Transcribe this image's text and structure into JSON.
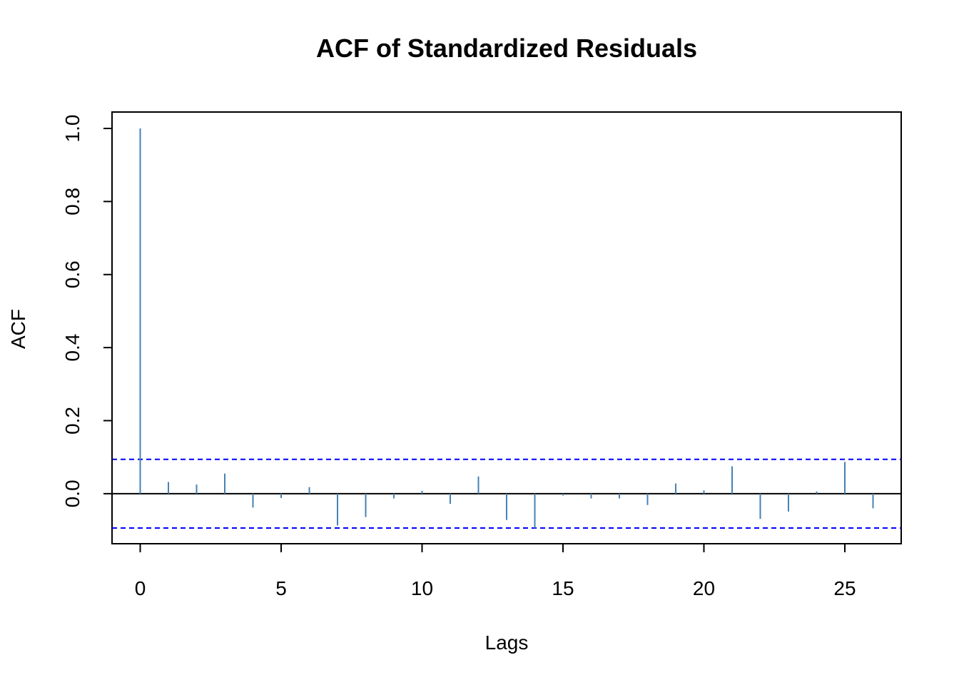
{
  "chart_data": {
    "type": "bar",
    "title": "ACF of Standardized Residuals",
    "xlabel": "Lags",
    "ylabel": "ACF",
    "xlim": [
      -1,
      27
    ],
    "ylim": [
      -0.137,
      1.045
    ],
    "x_ticks": [
      0,
      5,
      10,
      15,
      20,
      25
    ],
    "x_tick_labels": [
      "0",
      "5",
      "10",
      "15",
      "20",
      "25"
    ],
    "y_ticks": [
      0.0,
      0.2,
      0.4,
      0.6,
      0.8,
      1.0
    ],
    "y_tick_labels": [
      "0.0",
      "0.2",
      "0.4",
      "0.6",
      "0.8",
      "1.0"
    ],
    "grid": false,
    "series": [
      {
        "x": [
          0,
          1,
          2,
          3,
          4,
          5,
          6,
          7,
          8,
          9,
          10,
          11,
          12,
          13,
          14,
          15,
          16,
          17,
          18,
          19,
          20,
          21,
          22,
          23,
          24,
          25,
          26
        ],
        "values": [
          1.0,
          0.032,
          0.025,
          0.055,
          -0.038,
          -0.012,
          0.018,
          -0.087,
          -0.064,
          -0.013,
          0.008,
          -0.028,
          0.047,
          -0.072,
          -0.095,
          -0.005,
          -0.013,
          -0.013,
          -0.031,
          0.028,
          0.009,
          0.075,
          -0.069,
          -0.049,
          0.006,
          0.087,
          -0.04
        ],
        "color": "#4682B4"
      }
    ],
    "confidence_bounds": [
      0.094,
      -0.094
    ],
    "confidence_color": "#0000FF",
    "zero_line_color": "#000000"
  }
}
